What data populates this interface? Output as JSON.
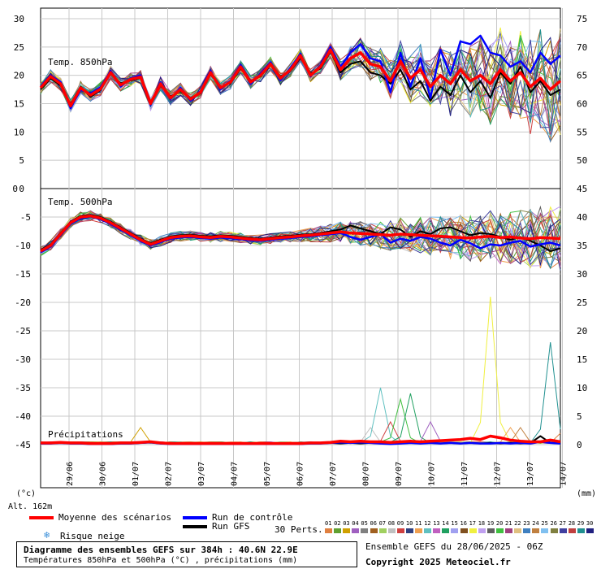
{
  "chart_data": [
    {
      "type": "line",
      "panel_label": "Temp. 850hPa",
      "left_axis_ticks": [
        "30",
        "25",
        "20",
        "15",
        "10",
        "5",
        "0"
      ],
      "right_axis_ticks": [
        "75",
        "70",
        "65",
        "60",
        "55",
        "50"
      ],
      "ylim": [
        0,
        30
      ],
      "series": [
        {
          "name": "Moyenne des scénarios",
          "color": "#ff0000",
          "values": [
            17.8,
            19.8,
            18.5,
            14.6,
            17.8,
            16.5,
            17.6,
            20.5,
            18.3,
            19.3,
            19.7,
            15.0,
            18.5,
            16.0,
            17.5,
            15.8,
            17.0,
            20.5,
            17.8,
            18.8,
            21.5,
            18.8,
            20.0,
            22.0,
            19.5,
            21.0,
            23.5,
            20.0,
            21.5,
            24.5,
            21.0,
            23.0,
            24.0,
            22.0,
            21.5,
            19.0,
            22.5,
            19.5,
            21.0,
            18.0,
            20.0,
            18.5,
            21.0,
            19.0,
            20.0,
            18.5,
            21.0,
            19.0,
            20.5,
            18.0,
            19.5,
            17.5,
            19.0
          ]
        },
        {
          "name": "Run de contrôle",
          "color": "#0000ff",
          "values": [
            18.0,
            20.0,
            18.8,
            14.2,
            17.5,
            16.8,
            17.9,
            20.8,
            18.0,
            19.5,
            20.0,
            14.8,
            18.8,
            15.8,
            17.8,
            15.5,
            17.2,
            20.8,
            17.5,
            19.0,
            21.8,
            18.5,
            20.3,
            22.3,
            19.2,
            21.3,
            23.8,
            19.8,
            21.8,
            25.0,
            21.5,
            24.0,
            25.5,
            23.0,
            22.5,
            17.0,
            24.0,
            18.0,
            23.0,
            16.0,
            24.5,
            20.0,
            26.0,
            25.5,
            27.0,
            24.0,
            23.5,
            21.5,
            22.5,
            20.5,
            24.0,
            22.0,
            23.5
          ]
        },
        {
          "name": "Run GFS",
          "color": "#000000",
          "values": [
            17.5,
            19.5,
            18.2,
            14.9,
            18.0,
            16.2,
            17.4,
            20.3,
            18.6,
            19.1,
            19.5,
            15.2,
            18.2,
            16.3,
            17.2,
            16.0,
            16.8,
            20.2,
            18.0,
            18.6,
            21.2,
            19.0,
            19.8,
            21.8,
            19.8,
            20.8,
            23.2,
            20.3,
            21.2,
            24.2,
            20.5,
            22.0,
            22.5,
            20.5,
            20.0,
            18.5,
            21.0,
            17.5,
            19.0,
            15.5,
            18.0,
            16.5,
            20.0,
            17.0,
            19.0,
            16.0,
            20.5,
            18.5,
            21.5,
            17.0,
            19.0,
            16.5,
            17.5
          ]
        }
      ]
    },
    {
      "type": "line",
      "panel_label": "Temp. 500hPa",
      "left_axis_ticks": [
        "0",
        "-5",
        "-10",
        "-15",
        "-20",
        "-25",
        "-30",
        "-35",
        "-40",
        "-45"
      ],
      "right_axis_ticks": [
        "45",
        "40",
        "35",
        "30",
        "25",
        "20",
        "15",
        "10",
        "5",
        "0"
      ],
      "ylim": [
        -45,
        0
      ],
      "series": [
        {
          "name": "Moyenne des scénarios",
          "color": "#ff0000",
          "values": [
            -11.0,
            -10.0,
            -8.0,
            -6.0,
            -5.0,
            -4.8,
            -5.2,
            -6.0,
            -7.0,
            -8.0,
            -9.0,
            -9.8,
            -9.2,
            -8.6,
            -8.4,
            -8.3,
            -8.5,
            -8.6,
            -8.4,
            -8.5,
            -8.7,
            -8.9,
            -9.0,
            -8.8,
            -8.6,
            -8.5,
            -8.3,
            -8.2,
            -8.0,
            -7.8,
            -7.6,
            -7.8,
            -7.9,
            -8.0,
            -8.1,
            -8.2,
            -8.0,
            -8.1,
            -8.2,
            -8.3,
            -8.4,
            -8.5,
            -8.6,
            -8.7,
            -8.5,
            -8.4,
            -8.6,
            -8.5,
            -8.7,
            -8.8,
            -8.6,
            -8.7,
            -8.8
          ]
        },
        {
          "name": "Run de contrôle",
          "color": "#0000ff",
          "values": [
            -11.2,
            -10.2,
            -8.2,
            -6.2,
            -5.2,
            -4.9,
            -5.4,
            -6.2,
            -7.2,
            -8.2,
            -9.2,
            -10.0,
            -9.4,
            -8.8,
            -8.6,
            -8.5,
            -8.7,
            -8.8,
            -8.6,
            -8.7,
            -8.9,
            -9.1,
            -9.2,
            -9.0,
            -8.8,
            -8.7,
            -8.5,
            -8.4,
            -8.2,
            -8.0,
            -7.8,
            -8.5,
            -9.0,
            -8.5,
            -8.0,
            -9.5,
            -8.8,
            -9.2,
            -8.5,
            -8.8,
            -9.5,
            -10.0,
            -9.0,
            -9.6,
            -10.5,
            -9.8,
            -10.0,
            -9.5,
            -9.2,
            -10.2,
            -9.8,
            -9.5,
            -10.0
          ]
        },
        {
          "name": "Run GFS",
          "color": "#000000",
          "values": [
            -10.8,
            -9.8,
            -7.8,
            -5.8,
            -4.8,
            -4.6,
            -5.0,
            -5.8,
            -6.8,
            -7.8,
            -8.8,
            -9.6,
            -9.0,
            -8.4,
            -8.2,
            -8.1,
            -8.3,
            -8.4,
            -8.2,
            -8.3,
            -8.5,
            -8.7,
            -8.8,
            -8.6,
            -8.4,
            -8.3,
            -8.1,
            -8.0,
            -7.8,
            -7.5,
            -7.2,
            -6.5,
            -7.0,
            -7.5,
            -8.0,
            -6.8,
            -7.2,
            -8.5,
            -7.5,
            -8.0,
            -7.0,
            -6.8,
            -7.5,
            -8.2,
            -7.8,
            -8.0,
            -8.5,
            -9.0,
            -8.5,
            -9.2,
            -10.0,
            -11.0,
            -10.5
          ]
        }
      ]
    },
    {
      "type": "line",
      "panel_label": "Précipitations",
      "ylim": [
        0,
        45
      ],
      "series": [
        {
          "name": "Moyenne des scénarios",
          "color": "#ff0000",
          "values": [
            0.3,
            0.3,
            0.4,
            0.3,
            0.3,
            0.2,
            0.2,
            0.2,
            0.3,
            0.3,
            0.4,
            0.5,
            0.3,
            0.2,
            0.2,
            0.2,
            0.2,
            0.2,
            0.2,
            0.2,
            0.2,
            0.2,
            0.2,
            0.2,
            0.2,
            0.2,
            0.2,
            0.3,
            0.3,
            0.4,
            0.6,
            0.5,
            0.6,
            0.5,
            0.5,
            0.4,
            0.5,
            0.6,
            0.5,
            0.6,
            0.7,
            0.8,
            0.9,
            1.1,
            0.9,
            1.5,
            1.2,
            0.8,
            0.6,
            0.5,
            0.5,
            0.8,
            0.5
          ]
        },
        {
          "name": "Run de contrôle",
          "color": "#0000ff",
          "values": [
            0.2,
            0.2,
            0.3,
            0.2,
            0.2,
            0.1,
            0.1,
            0.1,
            0.2,
            0.2,
            0.3,
            0.4,
            0.2,
            0.1,
            0.1,
            0.1,
            0.1,
            0.1,
            0.1,
            0.1,
            0.1,
            0.1,
            0.1,
            0.1,
            0.1,
            0.1,
            0.1,
            0.2,
            0.2,
            0.3,
            0.4,
            0.3,
            0.4,
            0.3,
            0.2,
            0.1,
            0.2,
            0.3,
            0.2,
            0.3,
            0.2,
            0.3,
            0.2,
            0.3,
            0.2,
            0.2,
            0.3,
            0.2,
            0.3,
            0.2,
            0.5,
            0.3,
            0.2
          ]
        },
        {
          "name": "Run GFS",
          "color": "#000000",
          "values": [
            0.2,
            0.2,
            0.3,
            0.2,
            0.2,
            0.1,
            0.1,
            0.1,
            0.2,
            0.2,
            0.3,
            0.4,
            0.2,
            0.1,
            0.1,
            0.1,
            0.1,
            0.1,
            0.1,
            0.1,
            0.1,
            0.1,
            0.1,
            0.1,
            0.1,
            0.1,
            0.1,
            0.2,
            0.2,
            0.3,
            0.2,
            0.3,
            0.2,
            0.3,
            0.2,
            0.4,
            0.2,
            0.3,
            0.2,
            0.3,
            0.2,
            0.3,
            0.2,
            0.3,
            0.2,
            0.3,
            0.2,
            0.3,
            0.2,
            0.3,
            1.5,
            0.3,
            0.2
          ]
        }
      ]
    }
  ],
  "x_axis": {
    "day_labels": [
      "29/06",
      "30/06",
      "01/07",
      "02/07",
      "03/07",
      "04/07",
      "05/07",
      "06/07",
      "07/07",
      "08/07",
      "09/07",
      "10/07",
      "11/07",
      "12/07",
      "13/07",
      "14/07"
    ]
  },
  "units": {
    "left": "(°c)",
    "right": "(mm)",
    "altitude": "Alt. 162m"
  },
  "legend": {
    "mean": "Moyenne des scénarios",
    "control": "Run de contrôle",
    "gfs": "Run GFS",
    "snow": "Risque neige",
    "perts": "30 Perts.",
    "perts_numbers": [
      "01",
      "02",
      "03",
      "04",
      "05",
      "06",
      "07",
      "08",
      "09",
      "10",
      "11",
      "12",
      "13",
      "14",
      "15",
      "16",
      "17",
      "18",
      "19",
      "20",
      "21",
      "22",
      "23",
      "24",
      "25",
      "26",
      "27",
      "28",
      "29",
      "30"
    ],
    "perts_colors": [
      "#e08040",
      "#60a030",
      "#d0a000",
      "#a060c0",
      "#808080",
      "#a06020",
      "#a0d060",
      "#c0c0c0",
      "#d04040",
      "#304080",
      "#f0a050",
      "#60c0c0",
      "#c060c0",
      "#20a060",
      "#a0a0f0",
      "#805020",
      "#f0f040",
      "#c0a0f0",
      "#606060",
      "#40c040",
      "#a04080",
      "#e0c080",
      "#4080c0",
      "#c08040",
      "#80c0f0",
      "#808040",
      "#4040a0",
      "#c04040",
      "#209090",
      "#202080"
    ],
    "mean_color": "#ff0000",
    "control_color": "#0000ff",
    "gfs_color": "#000000"
  },
  "title_box": {
    "line1": "Diagramme des ensembles GEFS sur 384h : 40.6N 22.9E",
    "line2": "Températures 850hPa et 500hPa (°C) , précipitations (mm)"
  },
  "footer": {
    "run": "Ensemble GEFS du 28/06/2025 - 06Z",
    "copyright": "Copyright 2025 Meteociel.fr"
  }
}
